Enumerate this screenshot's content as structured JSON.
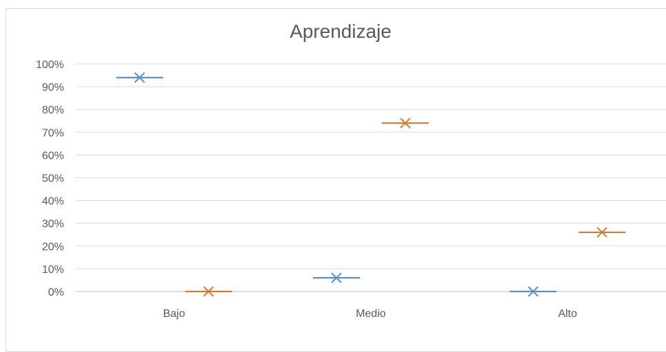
{
  "chart_data": {
    "type": "scatter",
    "title": "Aprendizaje",
    "categories": [
      "Bajo",
      "Medio",
      "Alto"
    ],
    "yticks": [
      "0%",
      "10%",
      "20%",
      "30%",
      "40%",
      "50%",
      "60%",
      "70%",
      "80%",
      "90%",
      "100%"
    ],
    "ylim": [
      0,
      100
    ],
    "grid": true,
    "legend": "none",
    "series": [
      {
        "values": [
          94,
          6,
          0
        ],
        "color": "#5b8fc7"
      },
      {
        "values": [
          0,
          74,
          26
        ],
        "color": "#d9773a"
      }
    ]
  }
}
